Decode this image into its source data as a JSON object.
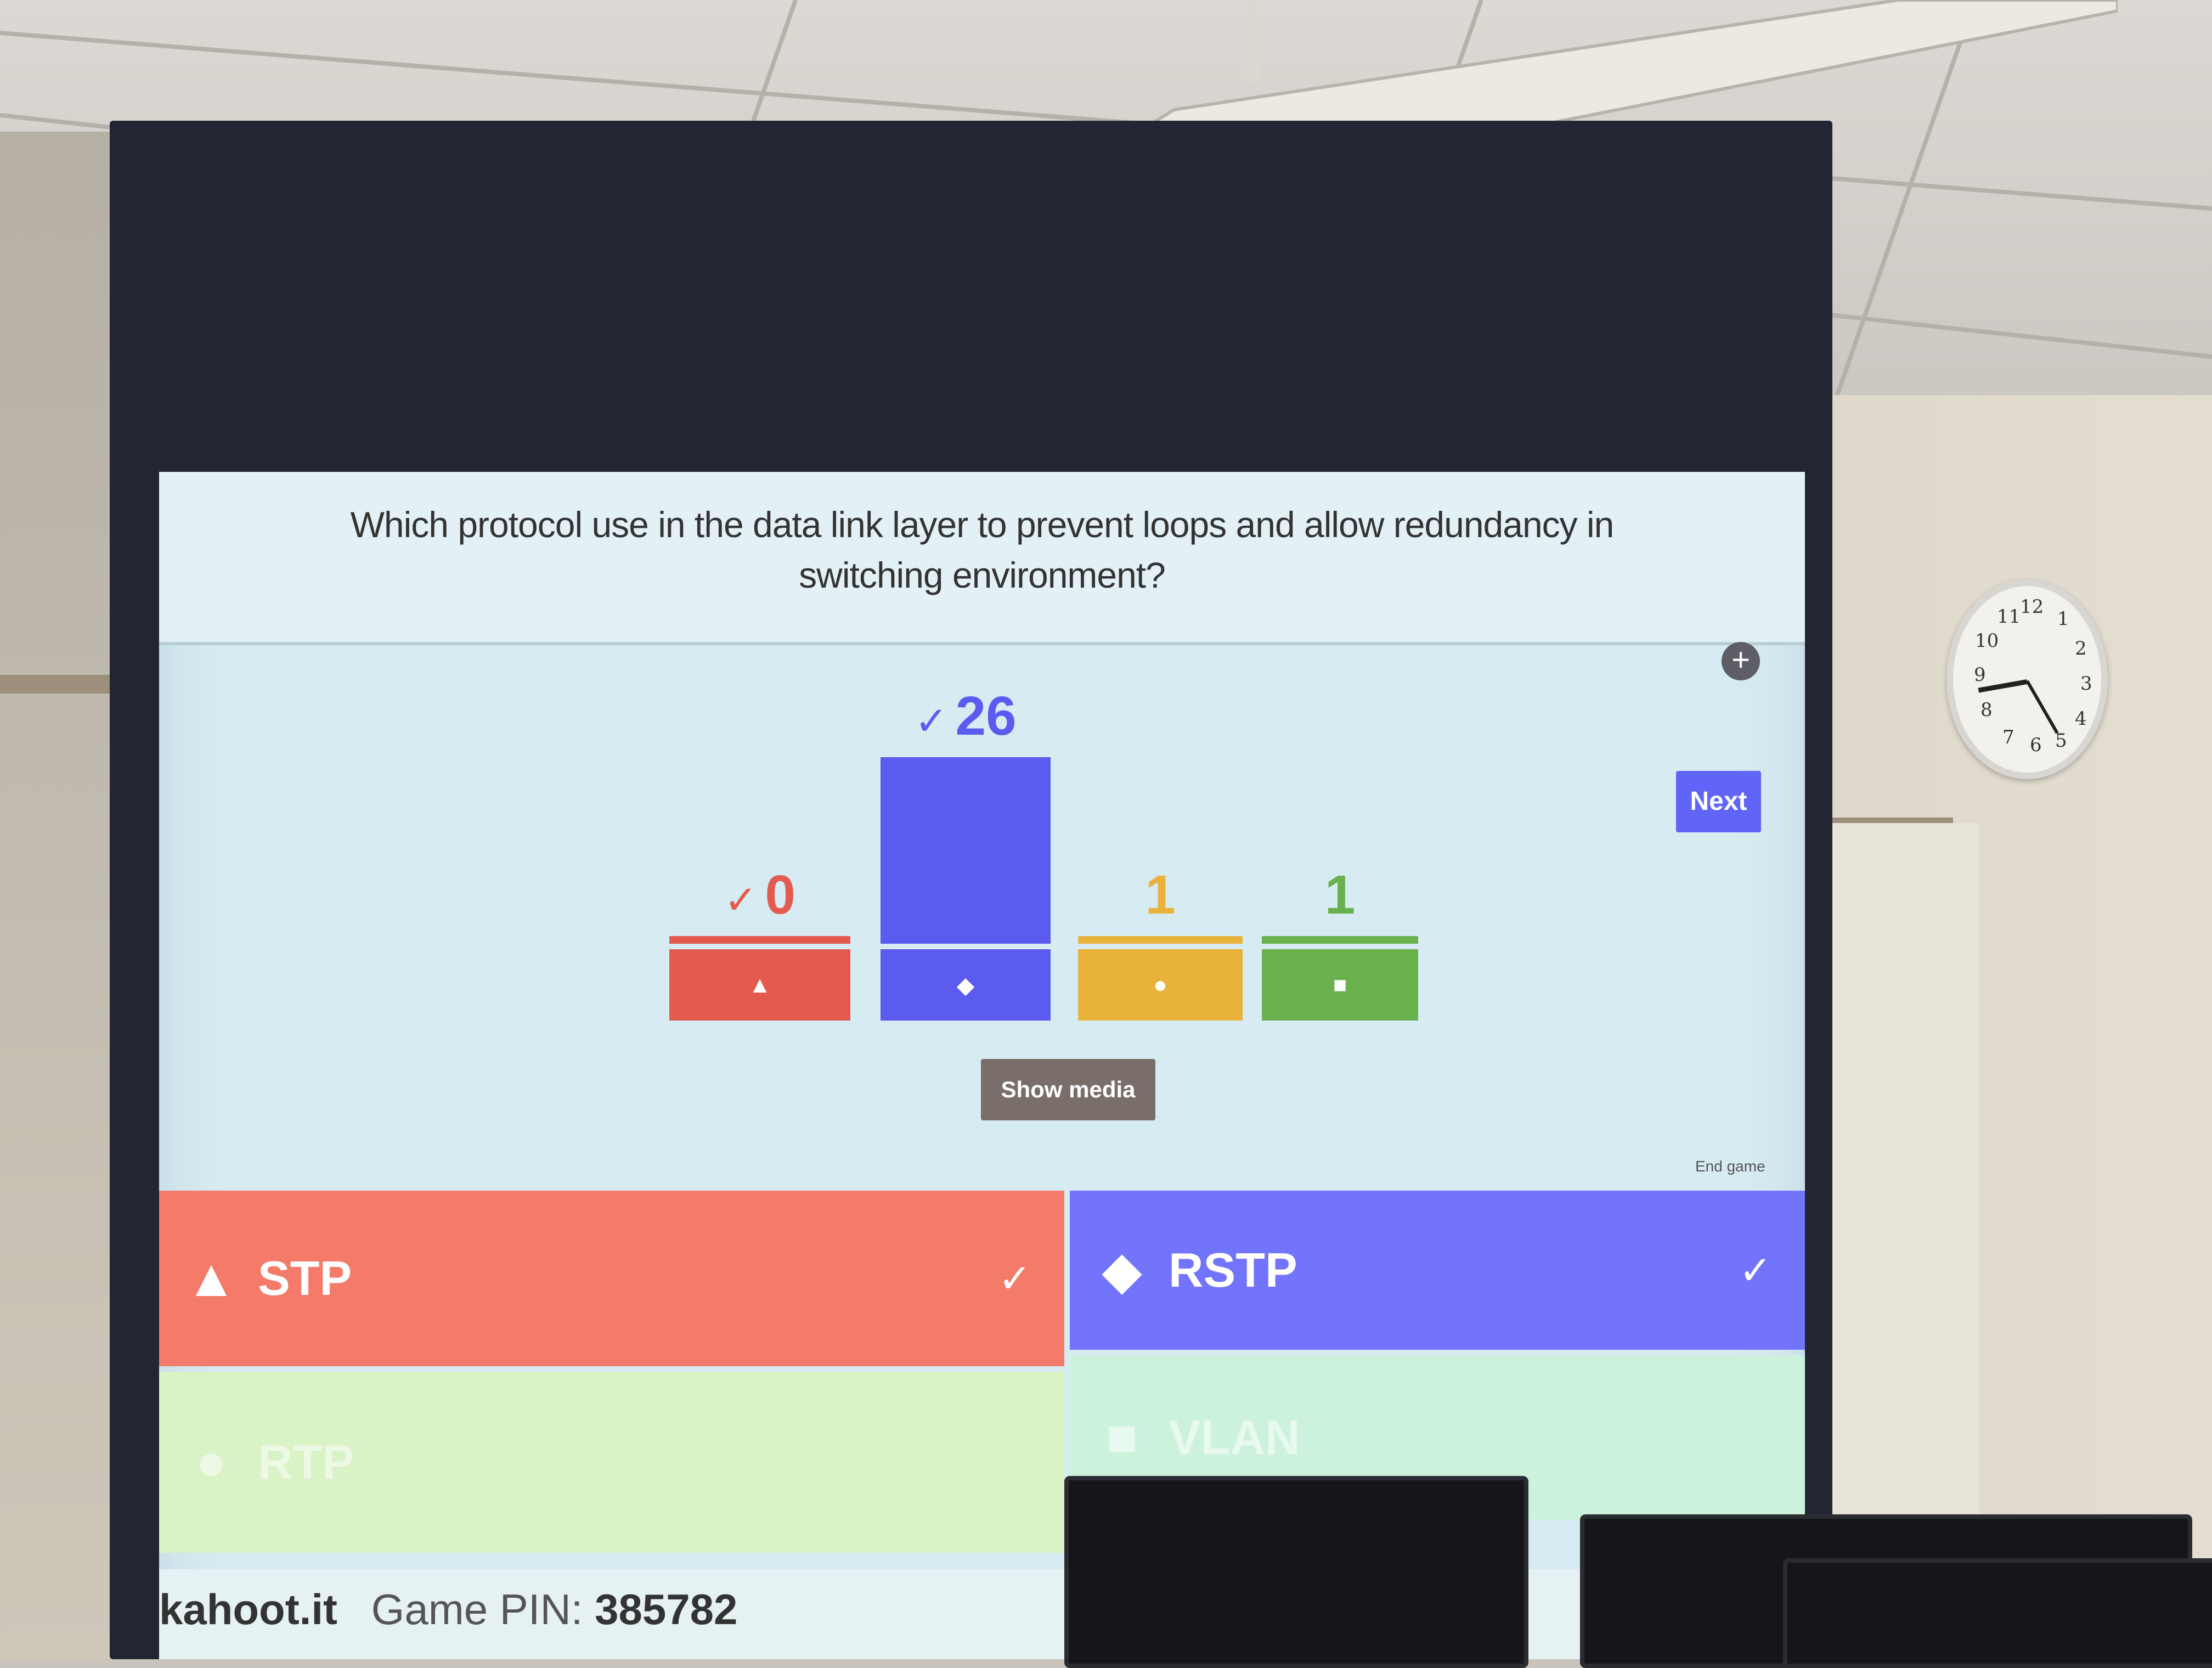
{
  "question": "Which protocol use in the data link layer to prevent loops and allow redundancy in switching environment?",
  "controls": {
    "next_label": "Next",
    "show_media_label": "Show media",
    "end_game_label": "End game"
  },
  "results": [
    {
      "shape": "triangle-icon",
      "glyph": "▲",
      "count": "0",
      "correct": true,
      "check": "✓",
      "color": "#e35a4f",
      "value": 0
    },
    {
      "shape": "diamond-icon",
      "glyph": "◆",
      "count": "26",
      "correct": true,
      "check": "✓",
      "color": "#5a5cf0",
      "value": 26
    },
    {
      "shape": "circle-icon",
      "glyph": "●",
      "count": "1",
      "correct": false,
      "check": "",
      "color": "#e8b23b",
      "value": 1
    },
    {
      "shape": "square-icon",
      "glyph": "■",
      "count": "1",
      "correct": false,
      "check": "",
      "color": "#6ab04c",
      "value": 1
    }
  ],
  "answers": [
    {
      "label": "STP",
      "glyph": "▲",
      "check": "✓",
      "color": "#f47a6a"
    },
    {
      "label": "RSTP",
      "glyph": "◆",
      "check": "✓",
      "color": "#7274fb"
    },
    {
      "label": "RTP",
      "glyph": "●",
      "check": "",
      "color": "#d9f2c6"
    },
    {
      "label": "VLAN",
      "glyph": "■",
      "check": "",
      "color": "#cdf2dc"
    }
  ],
  "footer": {
    "brand": "kahoot.it",
    "pin_label": "Game PIN:",
    "pin_value": "385782"
  },
  "clock_numbers": [
    "12",
    "1",
    "2",
    "3",
    "4",
    "5",
    "6",
    "7",
    "8",
    "9",
    "10",
    "11"
  ]
}
